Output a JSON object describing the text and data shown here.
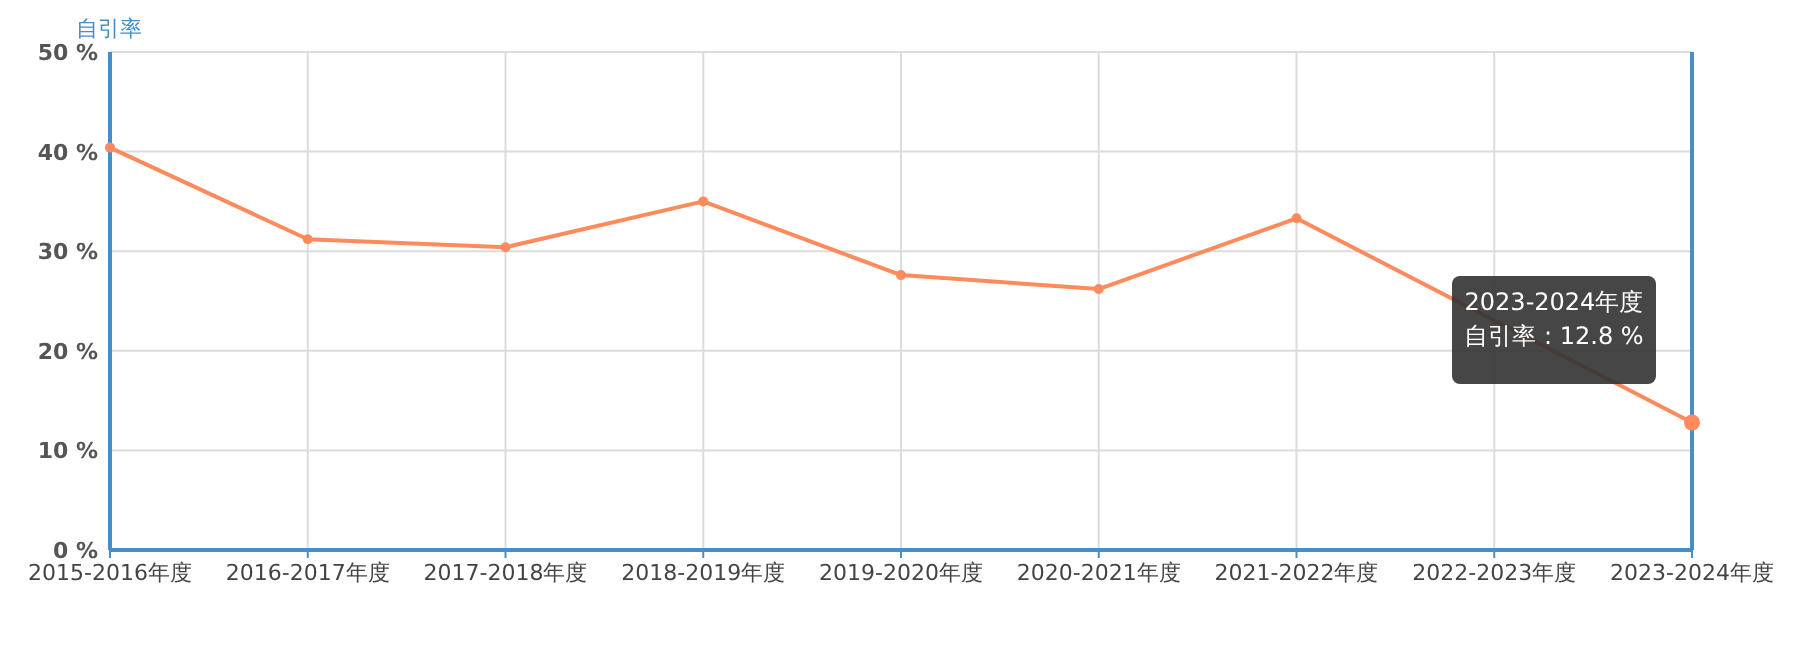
{
  "chart_data": {
    "type": "line",
    "ylabel": "自引率",
    "categories": [
      "2015-2016年度",
      "2016-2017年度",
      "2017-2018年度",
      "2018-2019年度",
      "2019-2020年度",
      "2020-2021年度",
      "2021-2022年度",
      "2022-2023年度",
      "2023-2024年度"
    ],
    "series": [
      {
        "color": "#ff8a5c",
        "values": [
          40.4,
          31.2,
          30.4,
          35.0,
          27.6,
          26.2,
          33.3,
          null,
          12.8
        ]
      }
    ],
    "ylim": [
      0,
      50
    ],
    "yticks": [
      {
        "value": 0,
        "label": "0 %"
      },
      {
        "value": 10,
        "label": "10 %"
      },
      {
        "value": 20,
        "label": "20 %"
      },
      {
        "value": 30,
        "label": "30 %"
      },
      {
        "value": 40,
        "label": "40 %"
      },
      {
        "value": 50,
        "label": "50 %"
      }
    ],
    "grid": true,
    "marker": "circle",
    "line_style": "solid",
    "annotations": [
      "2023-2024年度",
      "自引率 : 12.8 %"
    ]
  }
}
